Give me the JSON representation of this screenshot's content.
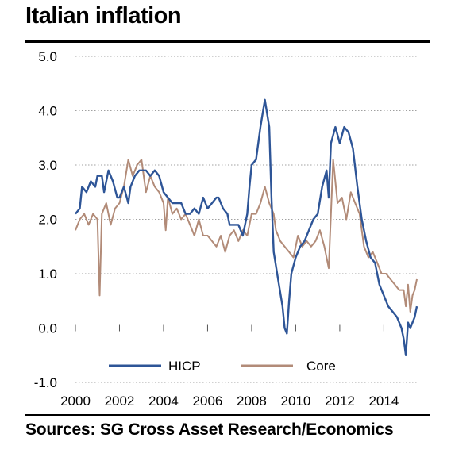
{
  "chart_data": {
    "type": "line",
    "title": "Italian inflation",
    "source": "Sources: SG Cross Asset Research/Economics",
    "xlabel": "",
    "ylabel": "",
    "xlim": [
      2000.0,
      2015.5
    ],
    "ylim": [
      -1.0,
      5.0
    ],
    "x_ticks": [
      2000,
      2002,
      2004,
      2006,
      2008,
      2010,
      2012,
      2014
    ],
    "y_ticks": [
      5.0,
      4.0,
      3.0,
      2.0,
      1.0,
      0.0,
      -1.0
    ],
    "y_tick_labels": [
      "5.0",
      "4.0",
      "3.0",
      "2.0",
      "1.0",
      "0.0",
      "-1.0"
    ],
    "grid": "horizontal dotted",
    "legend_position": "bottom",
    "series": [
      {
        "name": "HICP",
        "color": "#2e5597",
        "points": [
          [
            2000.0,
            2.1
          ],
          [
            2000.2,
            2.2
          ],
          [
            2000.3,
            2.6
          ],
          [
            2000.5,
            2.5
          ],
          [
            2000.7,
            2.7
          ],
          [
            2000.9,
            2.6
          ],
          [
            2001.0,
            2.8
          ],
          [
            2001.2,
            2.8
          ],
          [
            2001.3,
            2.5
          ],
          [
            2001.5,
            2.9
          ],
          [
            2001.7,
            2.7
          ],
          [
            2001.9,
            2.4
          ],
          [
            2002.0,
            2.4
          ],
          [
            2002.2,
            2.6
          ],
          [
            2002.4,
            2.3
          ],
          [
            2002.5,
            2.6
          ],
          [
            2002.7,
            2.8
          ],
          [
            2002.9,
            2.9
          ],
          [
            2003.0,
            2.9
          ],
          [
            2003.2,
            2.9
          ],
          [
            2003.4,
            2.8
          ],
          [
            2003.6,
            2.9
          ],
          [
            2003.8,
            2.8
          ],
          [
            2004.0,
            2.5
          ],
          [
            2004.2,
            2.4
          ],
          [
            2004.4,
            2.3
          ],
          [
            2004.6,
            2.3
          ],
          [
            2004.8,
            2.3
          ],
          [
            2005.0,
            2.1
          ],
          [
            2005.2,
            2.1
          ],
          [
            2005.4,
            2.2
          ],
          [
            2005.6,
            2.1
          ],
          [
            2005.8,
            2.4
          ],
          [
            2006.0,
            2.2
          ],
          [
            2006.2,
            2.3
          ],
          [
            2006.4,
            2.4
          ],
          [
            2006.5,
            2.4
          ],
          [
            2006.7,
            2.2
          ],
          [
            2006.9,
            2.1
          ],
          [
            2007.0,
            1.9
          ],
          [
            2007.2,
            1.9
          ],
          [
            2007.4,
            1.9
          ],
          [
            2007.6,
            1.7
          ],
          [
            2007.8,
            2.1
          ],
          [
            2007.9,
            2.6
          ],
          [
            2008.0,
            3.0
          ],
          [
            2008.2,
            3.1
          ],
          [
            2008.4,
            3.7
          ],
          [
            2008.6,
            4.2
          ],
          [
            2008.8,
            3.7
          ],
          [
            2008.9,
            2.4
          ],
          [
            2009.0,
            1.4
          ],
          [
            2009.2,
            0.9
          ],
          [
            2009.4,
            0.4
          ],
          [
            2009.5,
            0.0
          ],
          [
            2009.6,
            -0.1
          ],
          [
            2009.7,
            0.5
          ],
          [
            2009.8,
            1.0
          ],
          [
            2010.0,
            1.3
          ],
          [
            2010.2,
            1.5
          ],
          [
            2010.4,
            1.6
          ],
          [
            2010.6,
            1.8
          ],
          [
            2010.8,
            2.0
          ],
          [
            2011.0,
            2.1
          ],
          [
            2011.2,
            2.6
          ],
          [
            2011.4,
            2.9
          ],
          [
            2011.5,
            2.4
          ],
          [
            2011.6,
            3.4
          ],
          [
            2011.8,
            3.7
          ],
          [
            2012.0,
            3.4
          ],
          [
            2012.2,
            3.7
          ],
          [
            2012.4,
            3.6
          ],
          [
            2012.6,
            3.3
          ],
          [
            2012.8,
            2.6
          ],
          [
            2013.0,
            2.0
          ],
          [
            2013.2,
            1.6
          ],
          [
            2013.4,
            1.3
          ],
          [
            2013.6,
            1.2
          ],
          [
            2013.8,
            0.8
          ],
          [
            2014.0,
            0.6
          ],
          [
            2014.2,
            0.4
          ],
          [
            2014.4,
            0.3
          ],
          [
            2014.6,
            0.2
          ],
          [
            2014.8,
            0.0
          ],
          [
            2014.9,
            -0.2
          ],
          [
            2015.0,
            -0.5
          ],
          [
            2015.1,
            0.1
          ],
          [
            2015.2,
            0.0
          ],
          [
            2015.4,
            0.2
          ],
          [
            2015.5,
            0.4
          ]
        ]
      },
      {
        "name": "Core",
        "color": "#b28b78",
        "points": [
          [
            2000.0,
            1.8
          ],
          [
            2000.2,
            2.0
          ],
          [
            2000.4,
            2.1
          ],
          [
            2000.6,
            1.9
          ],
          [
            2000.8,
            2.1
          ],
          [
            2001.0,
            2.0
          ],
          [
            2001.1,
            0.6
          ],
          [
            2001.2,
            2.1
          ],
          [
            2001.4,
            2.3
          ],
          [
            2001.6,
            1.9
          ],
          [
            2001.8,
            2.2
          ],
          [
            2002.0,
            2.3
          ],
          [
            2002.2,
            2.6
          ],
          [
            2002.4,
            3.1
          ],
          [
            2002.6,
            2.8
          ],
          [
            2002.8,
            3.0
          ],
          [
            2003.0,
            3.1
          ],
          [
            2003.2,
            2.5
          ],
          [
            2003.4,
            2.8
          ],
          [
            2003.6,
            2.6
          ],
          [
            2003.8,
            2.5
          ],
          [
            2004.0,
            2.3
          ],
          [
            2004.1,
            1.8
          ],
          [
            2004.2,
            2.4
          ],
          [
            2004.4,
            2.1
          ],
          [
            2004.6,
            2.2
          ],
          [
            2004.8,
            2.0
          ],
          [
            2005.0,
            2.1
          ],
          [
            2005.2,
            1.9
          ],
          [
            2005.4,
            1.7
          ],
          [
            2005.6,
            2.0
          ],
          [
            2005.8,
            1.7
          ],
          [
            2006.0,
            1.7
          ],
          [
            2006.2,
            1.6
          ],
          [
            2006.4,
            1.5
          ],
          [
            2006.6,
            1.7
          ],
          [
            2006.8,
            1.4
          ],
          [
            2007.0,
            1.7
          ],
          [
            2007.2,
            1.8
          ],
          [
            2007.4,
            1.6
          ],
          [
            2007.6,
            1.8
          ],
          [
            2007.8,
            1.7
          ],
          [
            2008.0,
            2.1
          ],
          [
            2008.2,
            2.1
          ],
          [
            2008.4,
            2.3
          ],
          [
            2008.6,
            2.6
          ],
          [
            2008.8,
            2.3
          ],
          [
            2009.0,
            2.1
          ],
          [
            2009.1,
            1.8
          ],
          [
            2009.3,
            1.6
          ],
          [
            2009.5,
            1.5
          ],
          [
            2009.7,
            1.4
          ],
          [
            2009.9,
            1.3
          ],
          [
            2010.1,
            1.7
          ],
          [
            2010.3,
            1.5
          ],
          [
            2010.5,
            1.6
          ],
          [
            2010.7,
            1.5
          ],
          [
            2010.9,
            1.6
          ],
          [
            2011.1,
            1.8
          ],
          [
            2011.3,
            1.5
          ],
          [
            2011.5,
            1.1
          ],
          [
            2011.7,
            3.1
          ],
          [
            2011.9,
            2.3
          ],
          [
            2012.1,
            2.4
          ],
          [
            2012.3,
            2.0
          ],
          [
            2012.5,
            2.5
          ],
          [
            2012.7,
            2.3
          ],
          [
            2012.9,
            2.1
          ],
          [
            2013.1,
            1.5
          ],
          [
            2013.3,
            1.3
          ],
          [
            2013.5,
            1.4
          ],
          [
            2013.7,
            1.2
          ],
          [
            2013.9,
            1.0
          ],
          [
            2014.1,
            1.0
          ],
          [
            2014.3,
            0.9
          ],
          [
            2014.5,
            0.8
          ],
          [
            2014.7,
            0.7
          ],
          [
            2014.9,
            0.7
          ],
          [
            2015.0,
            0.4
          ],
          [
            2015.1,
            0.8
          ],
          [
            2015.2,
            0.3
          ],
          [
            2015.3,
            0.6
          ],
          [
            2015.4,
            0.7
          ],
          [
            2015.5,
            0.9
          ]
        ]
      }
    ]
  }
}
